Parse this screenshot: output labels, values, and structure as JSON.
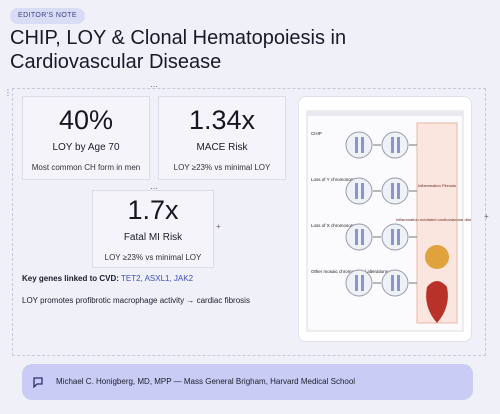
{
  "badge": "EDITOR'S NOTE",
  "title": "CHIP, LOY & Clonal Hematopoiesis in Cardiovascular Disease",
  "stats": [
    {
      "value": "40%",
      "label": "LOY by Age 70",
      "note": "Most common CH form in men"
    },
    {
      "value": "1.34x",
      "label": "MACE Risk",
      "note": "LOY ≥23% vs minimal LOY"
    },
    {
      "value": "1.7x",
      "label": "Fatal MI Risk",
      "note": "LOY ≥23% vs minimal LOY"
    }
  ],
  "genes": {
    "label": "Key genes linked to CVD:",
    "list": "TET2, ASXL1, JAK2"
  },
  "finding": "LOY promotes profibrotic macrophage activity → cardiac fibrosis",
  "figure": {
    "rows": [
      "CHIP",
      "Loss of Y chromosome",
      "Loss of X chromosome",
      "Other mosaic chromosomal alterations"
    ],
    "outcomes": [
      "Inflammation Fibrosis",
      "Inflammation-mediated cardiovascular disease",
      "Heart failure"
    ]
  },
  "footer": "Michael C. Honigberg, MD, MPP — Mass General Brigham, Harvard Medical School"
}
